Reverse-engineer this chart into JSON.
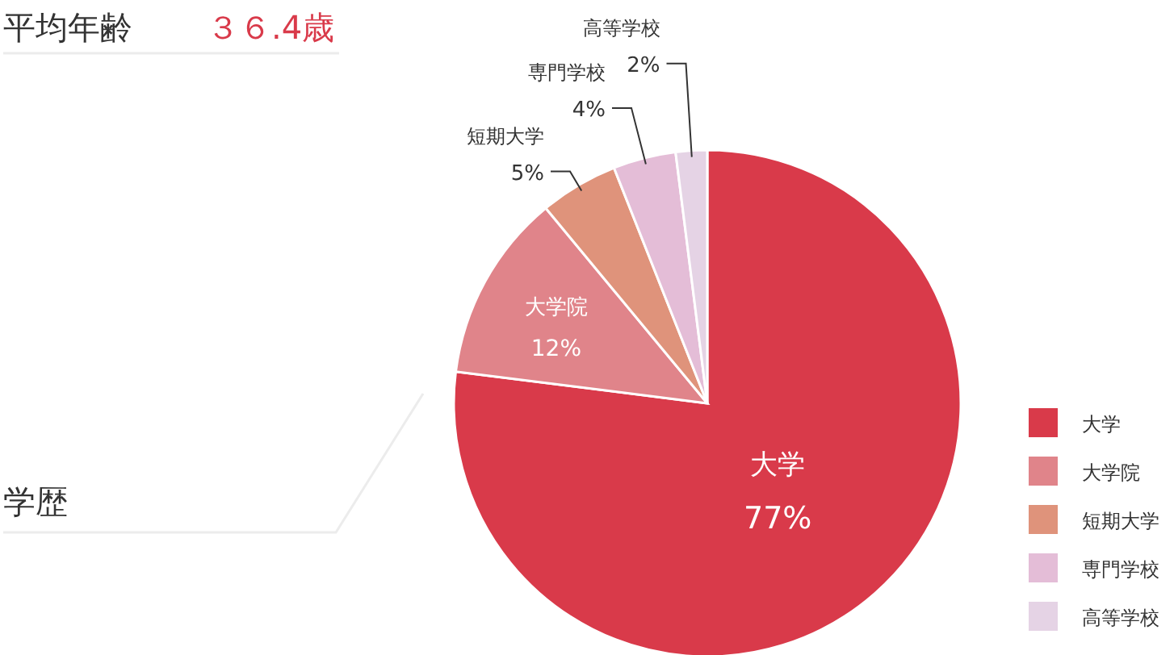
{
  "chart_data": {
    "type": "pie",
    "title": "平均年齢",
    "subtitle": "３６.4歳",
    "annotations": [
      "学歴"
    ],
    "categories": [
      "大学",
      "大学院",
      "短期大学",
      "専門学校",
      "高等学校"
    ],
    "values": [
      77,
      12,
      5,
      4,
      2
    ],
    "colors": [
      "#d93a4a",
      "#e0848a",
      "#df937b",
      "#e4bdd7",
      "#e5d3e5"
    ],
    "value_labels": [
      "77%",
      "12%",
      "5%",
      "4%",
      "2%"
    ],
    "legend": "right"
  }
}
